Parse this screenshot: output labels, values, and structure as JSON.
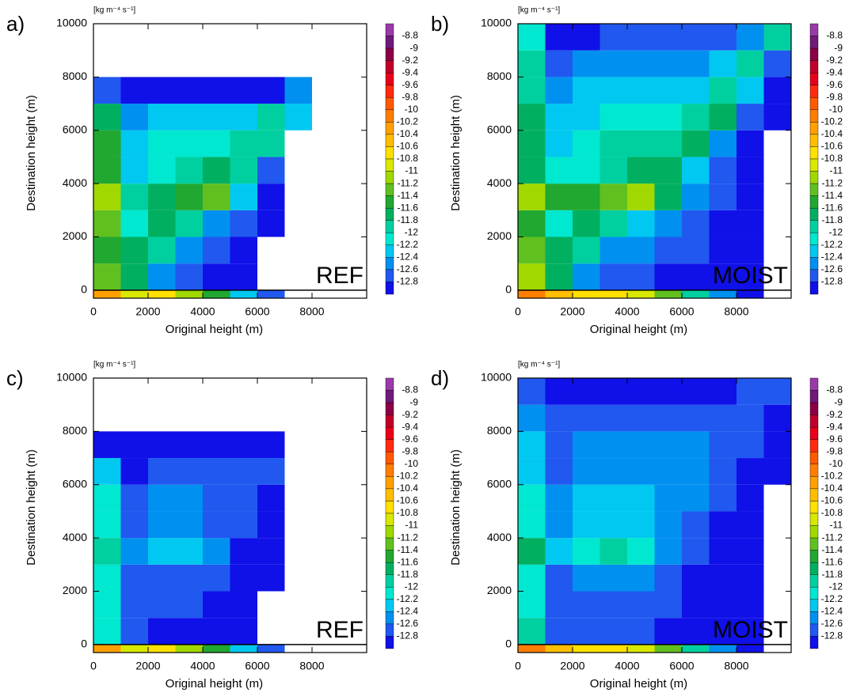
{
  "chart_data": [
    {
      "type": "heatmap",
      "panel_label": "a)",
      "annotation": "REF",
      "units": "[kg m⁻⁴ s⁻¹]",
      "xlabel": "Original height (m)",
      "ylabel": "Destination height (m)",
      "xlim": [
        0,
        10000
      ],
      "ylim": [
        -300,
        10000
      ],
      "xticks": [
        0,
        2000,
        4000,
        6000,
        8000
      ],
      "yticks": [
        0,
        2000,
        4000,
        6000,
        8000,
        10000
      ],
      "xbins": [
        0,
        1000,
        2000,
        3000,
        4000,
        5000,
        6000,
        7000,
        8000,
        9000,
        10000
      ],
      "ybins": [
        0,
        1000,
        2000,
        3000,
        4000,
        5000,
        6000,
        7000,
        8000,
        9000,
        10000
      ],
      "values": [
        [
          -11.2,
          -11.6,
          -12.4,
          -12.6,
          -12.8,
          -12.8,
          null,
          null,
          null,
          null
        ],
        [
          -11.4,
          -11.6,
          -11.8,
          -12.4,
          -12.6,
          -12.8,
          null,
          null,
          null,
          null
        ],
        [
          -11.2,
          -12,
          -11.6,
          -11.8,
          -12.4,
          -12.6,
          -12.8,
          null,
          null,
          null
        ],
        [
          -11,
          -11.8,
          -11.6,
          -11.4,
          -11.2,
          -12.2,
          -12.8,
          null,
          null,
          null
        ],
        [
          -11.4,
          -12.2,
          -12,
          -11.8,
          -11.6,
          -11.8,
          -12.6,
          null,
          null,
          null
        ],
        [
          -11.4,
          -12.2,
          -12,
          -12,
          -12,
          -11.8,
          -11.8,
          null,
          null,
          null
        ],
        [
          -11.6,
          -12.4,
          -12.2,
          -12.2,
          -12.2,
          -12.2,
          -11.8,
          -12.2,
          null,
          null
        ],
        [
          -12.6,
          -12.8,
          -12.8,
          -12.8,
          -12.8,
          -12.8,
          -12.8,
          -12.4,
          null,
          null
        ],
        [
          null,
          null,
          null,
          null,
          null,
          null,
          null,
          null,
          null,
          null
        ],
        [
          null,
          null,
          null,
          null,
          null,
          null,
          null,
          null,
          null,
          null
        ]
      ],
      "strip": [
        -10.2,
        -10.8,
        -10.6,
        -11,
        -11.4,
        -12.2,
        -12.6,
        null,
        null,
        null
      ],
      "colorbar": {
        "ticks": [
          -8.8,
          -9,
          -9.2,
          -9.4,
          -9.6,
          -9.8,
          -10,
          -10.2,
          -10.4,
          -10.6,
          -10.8,
          -11,
          -11.2,
          -11.4,
          -11.6,
          -11.8,
          -12,
          -12.2,
          -12.4,
          -12.6,
          -12.8
        ],
        "colors": [
          "#9a3aa8",
          "#701a7a",
          "#8b0046",
          "#c0002a",
          "#e8001a",
          "#ff2a10",
          "#ff5a00",
          "#ff7e00",
          "#ffa000",
          "#ffbe00",
          "#ffe000",
          "#d8e800",
          "#a0d800",
          "#60c020",
          "#20a830",
          "#00b060",
          "#00d0a0",
          "#00e8d0",
          "#00c8f0",
          "#0090f0",
          "#2058f0",
          "#1010e8"
        ]
      }
    },
    {
      "type": "heatmap",
      "panel_label": "b)",
      "annotation": "MOIST",
      "units": "[kg m⁻⁴ s⁻¹]",
      "xlabel": "Original height (m)",
      "ylabel": "Destination height (m)",
      "xlim": [
        0,
        10000
      ],
      "ylim": [
        -300,
        10000
      ],
      "xticks": [
        0,
        2000,
        4000,
        6000,
        8000
      ],
      "yticks": [
        0,
        2000,
        4000,
        6000,
        8000,
        10000
      ],
      "xbins": [
        0,
        1000,
        2000,
        3000,
        4000,
        5000,
        6000,
        7000,
        8000,
        9000,
        10000
      ],
      "ybins": [
        0,
        1000,
        2000,
        3000,
        4000,
        5000,
        6000,
        7000,
        8000,
        9000,
        10000
      ],
      "values": [
        [
          -11,
          -11.6,
          -12.4,
          -12.6,
          -12.6,
          -12.8,
          -12.8,
          -12.8,
          -12.8,
          null
        ],
        [
          -11.2,
          -11.6,
          -11.8,
          -12.4,
          -12.4,
          -12.6,
          -12.6,
          -12.8,
          -12.8,
          null
        ],
        [
          -11.4,
          -12,
          -11.6,
          -11.8,
          -12.2,
          -12.4,
          -12.6,
          -12.8,
          -12.8,
          null
        ],
        [
          -11,
          -11.4,
          -11.4,
          -11.2,
          -11,
          -11.6,
          -12.4,
          -12.6,
          -12.8,
          null
        ],
        [
          -11.6,
          -12,
          -12,
          -11.8,
          -11.6,
          -11.6,
          -12.2,
          -12.6,
          -12.8,
          null
        ],
        [
          -11.6,
          -12.2,
          -12,
          -11.8,
          -11.8,
          -11.8,
          -11.6,
          -12.4,
          -12.8,
          null
        ],
        [
          -11.6,
          -12.2,
          -12.2,
          -12,
          -12,
          -12,
          -11.8,
          -11.6,
          -12.6,
          -12.8
        ],
        [
          -11.8,
          -12.4,
          -12.2,
          -12.2,
          -12.2,
          -12.2,
          -12.2,
          -11.8,
          -12.2,
          -12.8
        ],
        [
          -11.8,
          -12.6,
          -12.4,
          -12.4,
          -12.4,
          -12.4,
          -12.4,
          -12.2,
          -11.8,
          -12.6
        ],
        [
          -12,
          -12.8,
          -12.8,
          -12.6,
          -12.6,
          -12.6,
          -12.6,
          -12.6,
          -12.4,
          -11.8
        ]
      ],
      "strip": [
        -10,
        -10.4,
        -10.6,
        -10.6,
        -10.8,
        -11.2,
        -11.8,
        -12.4,
        -12.8,
        null
      ],
      "colorbar": {
        "ticks": [
          -8.8,
          -9,
          -9.2,
          -9.4,
          -9.6,
          -9.8,
          -10,
          -10.2,
          -10.4,
          -10.6,
          -10.8,
          -11,
          -11.2,
          -11.4,
          -11.6,
          -11.8,
          -12,
          -12.2,
          -12.4,
          -12.6,
          -12.8
        ],
        "colors": [
          "#9a3aa8",
          "#701a7a",
          "#8b0046",
          "#c0002a",
          "#e8001a",
          "#ff2a10",
          "#ff5a00",
          "#ff7e00",
          "#ffa000",
          "#ffbe00",
          "#ffe000",
          "#d8e800",
          "#a0d800",
          "#60c020",
          "#20a830",
          "#00b060",
          "#00d0a0",
          "#00e8d0",
          "#00c8f0",
          "#0090f0",
          "#2058f0",
          "#1010e8"
        ]
      }
    },
    {
      "type": "heatmap",
      "panel_label": "c)",
      "annotation": "REF",
      "units": "[kg m⁻⁴ s⁻¹]",
      "xlabel": "Original height (m)",
      "ylabel": "Destination height (m)",
      "xlim": [
        0,
        10000
      ],
      "ylim": [
        -300,
        10000
      ],
      "xticks": [
        0,
        2000,
        4000,
        6000,
        8000
      ],
      "yticks": [
        0,
        2000,
        4000,
        6000,
        8000,
        10000
      ],
      "xbins": [
        0,
        1000,
        2000,
        3000,
        4000,
        5000,
        6000,
        7000,
        8000,
        9000,
        10000
      ],
      "ybins": [
        0,
        1000,
        2000,
        3000,
        4000,
        5000,
        6000,
        7000,
        8000,
        9000,
        10000
      ],
      "values": [
        [
          -12,
          -12.6,
          -12.8,
          -12.8,
          -12.8,
          -12.8,
          null,
          null,
          null,
          null
        ],
        [
          -12,
          -12.6,
          -12.6,
          -12.6,
          -12.8,
          -12.8,
          null,
          null,
          null,
          null
        ],
        [
          -12,
          -12.6,
          -12.6,
          -12.6,
          -12.6,
          -12.8,
          -12.8,
          null,
          null,
          null
        ],
        [
          -11.8,
          -12.4,
          -12.2,
          -12.2,
          -12.4,
          -12.8,
          -12.8,
          null,
          null,
          null
        ],
        [
          -12,
          -12.6,
          -12.4,
          -12.4,
          -12.6,
          -12.6,
          -12.8,
          null,
          null,
          null
        ],
        [
          -12,
          -12.6,
          -12.4,
          -12.4,
          -12.6,
          -12.6,
          -12.8,
          null,
          null,
          null
        ],
        [
          -12.2,
          -12.8,
          -12.6,
          -12.6,
          -12.6,
          -12.6,
          -12.6,
          null,
          null,
          null
        ],
        [
          -12.8,
          -12.8,
          -12.8,
          -12.8,
          -12.8,
          -12.8,
          -12.8,
          null,
          null,
          null
        ],
        [
          null,
          null,
          null,
          null,
          null,
          null,
          null,
          null,
          null,
          null
        ],
        [
          null,
          null,
          null,
          null,
          null,
          null,
          null,
          null,
          null,
          null
        ]
      ],
      "strip": [
        -10.2,
        -10.8,
        -10.6,
        -11,
        -11.4,
        -12.2,
        -12.6,
        null,
        null,
        null
      ],
      "colorbar": {
        "ticks": [
          -8.8,
          -9,
          -9.2,
          -9.4,
          -9.6,
          -9.8,
          -10,
          -10.2,
          -10.4,
          -10.6,
          -10.8,
          -11,
          -11.2,
          -11.4,
          -11.6,
          -11.8,
          -12,
          -12.2,
          -12.4,
          -12.6,
          -12.8
        ],
        "colors": [
          "#9a3aa8",
          "#701a7a",
          "#8b0046",
          "#c0002a",
          "#e8001a",
          "#ff2a10",
          "#ff5a00",
          "#ff7e00",
          "#ffa000",
          "#ffbe00",
          "#ffe000",
          "#d8e800",
          "#a0d800",
          "#60c020",
          "#20a830",
          "#00b060",
          "#00d0a0",
          "#00e8d0",
          "#00c8f0",
          "#0090f0",
          "#2058f0",
          "#1010e8"
        ]
      }
    },
    {
      "type": "heatmap",
      "panel_label": "d)",
      "annotation": "MOIST",
      "units": "[kg m⁻⁴ s⁻¹]",
      "xlabel": "Original height (m)",
      "ylabel": "Destination height (m)",
      "xlim": [
        0,
        10000
      ],
      "ylim": [
        -300,
        10000
      ],
      "xticks": [
        0,
        2000,
        4000,
        6000,
        8000
      ],
      "yticks": [
        0,
        2000,
        4000,
        6000,
        8000,
        10000
      ],
      "xbins": [
        0,
        1000,
        2000,
        3000,
        4000,
        5000,
        6000,
        7000,
        8000,
        9000,
        10000
      ],
      "ybins": [
        0,
        1000,
        2000,
        3000,
        4000,
        5000,
        6000,
        7000,
        8000,
        9000,
        10000
      ],
      "values": [
        [
          -11.8,
          -12.6,
          -12.6,
          -12.6,
          -12.6,
          -12.8,
          -12.8,
          -12.8,
          -12.8,
          null
        ],
        [
          -12,
          -12.6,
          -12.6,
          -12.6,
          -12.6,
          -12.6,
          -12.8,
          -12.8,
          -12.8,
          null
        ],
        [
          -12,
          -12.6,
          -12.4,
          -12.4,
          -12.4,
          -12.6,
          -12.8,
          -12.8,
          -12.8,
          null
        ],
        [
          -11.6,
          -12.2,
          -12,
          -11.8,
          -12,
          -12.4,
          -12.6,
          -12.8,
          -12.8,
          null
        ],
        [
          -12,
          -12.4,
          -12.2,
          -12.2,
          -12.2,
          -12.4,
          -12.6,
          -12.8,
          -12.8,
          null
        ],
        [
          -12,
          -12.4,
          -12.2,
          -12.2,
          -12.2,
          -12.4,
          -12.4,
          -12.6,
          -12.8,
          null
        ],
        [
          -12.2,
          -12.6,
          -12.4,
          -12.4,
          -12.4,
          -12.4,
          -12.4,
          -12.6,
          -12.8,
          -12.8
        ],
        [
          -12.2,
          -12.6,
          -12.4,
          -12.4,
          -12.4,
          -12.4,
          -12.4,
          -12.6,
          -12.6,
          -12.8
        ],
        [
          -12.4,
          -12.6,
          -12.6,
          -12.6,
          -12.6,
          -12.6,
          -12.6,
          -12.6,
          -12.6,
          -12.8
        ],
        [
          -12.6,
          -12.8,
          -12.8,
          -12.8,
          -12.8,
          -12.8,
          -12.8,
          -12.8,
          -12.6,
          -12.6
        ]
      ],
      "strip": [
        -10,
        -10.4,
        -10.6,
        -10.6,
        -10.8,
        -11.2,
        -11.8,
        -12.4,
        -12.8,
        null
      ],
      "colorbar": {
        "ticks": [
          -8.8,
          -9,
          -9.2,
          -9.4,
          -9.6,
          -9.8,
          -10,
          -10.2,
          -10.4,
          -10.6,
          -10.8,
          -11,
          -11.2,
          -11.4,
          -11.6,
          -11.8,
          -12,
          -12.2,
          -12.4,
          -12.6,
          -12.8
        ],
        "colors": [
          "#9a3aa8",
          "#701a7a",
          "#8b0046",
          "#c0002a",
          "#e8001a",
          "#ff2a10",
          "#ff5a00",
          "#ff7e00",
          "#ffa000",
          "#ffbe00",
          "#ffe000",
          "#d8e800",
          "#a0d800",
          "#60c020",
          "#20a830",
          "#00b060",
          "#00d0a0",
          "#00e8d0",
          "#00c8f0",
          "#0090f0",
          "#2058f0",
          "#1010e8"
        ]
      }
    }
  ]
}
